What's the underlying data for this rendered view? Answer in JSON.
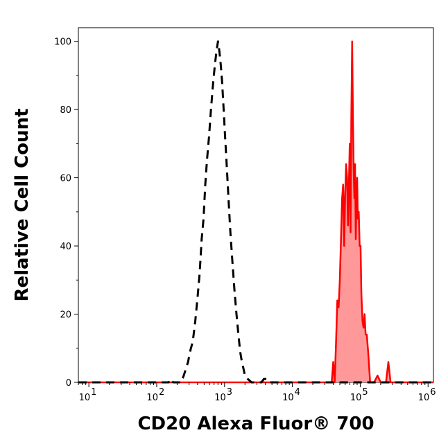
{
  "chart_data": {
    "type": "area",
    "title": "",
    "xlabel": "CD20 Alexa Fluor® 700",
    "ylabel": "Relative Cell Count",
    "x_scale": "log",
    "xlim": [
      7,
      1200000
    ],
    "ylim": [
      0,
      104
    ],
    "x_ticks": [
      {
        "value": 10,
        "base": "10",
        "exp": "1"
      },
      {
        "value": 100,
        "base": "10",
        "exp": "2"
      },
      {
        "value": 1000,
        "base": "10",
        "exp": "3"
      },
      {
        "value": 10000,
        "base": "10",
        "exp": "4"
      },
      {
        "value": 100000,
        "base": "10",
        "exp": "5"
      },
      {
        "value": 1000000,
        "base": "10",
        "exp": "6"
      }
    ],
    "y_ticks": [
      0,
      20,
      40,
      60,
      80,
      100
    ],
    "grid": false,
    "legend": "none",
    "series": [
      {
        "style": "dashed",
        "color": "#000000",
        "fill": "none",
        "points": [
          [
            7,
            0
          ],
          [
            100,
            0
          ],
          [
            150,
            0
          ],
          [
            160,
            1
          ],
          [
            175,
            0
          ],
          [
            230,
            0
          ],
          [
            250,
            2
          ],
          [
            270,
            4
          ],
          [
            290,
            6
          ],
          [
            310,
            9
          ],
          [
            340,
            12
          ],
          [
            370,
            18
          ],
          [
            400,
            25
          ],
          [
            430,
            32
          ],
          [
            460,
            42
          ],
          [
            490,
            48
          ],
          [
            520,
            58
          ],
          [
            550,
            65
          ],
          [
            590,
            72
          ],
          [
            630,
            80
          ],
          [
            680,
            88
          ],
          [
            720,
            93
          ],
          [
            760,
            97
          ],
          [
            800,
            100
          ],
          [
            840,
            97
          ],
          [
            880,
            93
          ],
          [
            920,
            88
          ],
          [
            970,
            80
          ],
          [
            1020,
            72
          ],
          [
            1080,
            63
          ],
          [
            1150,
            53
          ],
          [
            1220,
            44
          ],
          [
            1300,
            36
          ],
          [
            1400,
            27
          ],
          [
            1500,
            20
          ],
          [
            1600,
            14
          ],
          [
            1700,
            9
          ],
          [
            1800,
            6
          ],
          [
            1900,
            4
          ],
          [
            2000,
            2
          ],
          [
            2200,
            1
          ],
          [
            2500,
            0
          ],
          [
            3000,
            0
          ],
          [
            3500,
            0
          ],
          [
            3800,
            1
          ],
          [
            4200,
            1
          ],
          [
            4600,
            0
          ],
          [
            5000,
            0
          ],
          [
            1200000,
            0
          ]
        ]
      },
      {
        "style": "solid",
        "color": "#ff0000",
        "fill": "#ff9999",
        "points": [
          [
            7,
            0
          ],
          [
            30000,
            0
          ],
          [
            38000,
            0
          ],
          [
            40000,
            6
          ],
          [
            42000,
            0
          ],
          [
            44000,
            12
          ],
          [
            46000,
            24
          ],
          [
            48000,
            22
          ],
          [
            50000,
            30
          ],
          [
            52000,
            42
          ],
          [
            54000,
            54
          ],
          [
            56000,
            58
          ],
          [
            58000,
            40
          ],
          [
            60000,
            55
          ],
          [
            62000,
            64
          ],
          [
            64000,
            60
          ],
          [
            66000,
            46
          ],
          [
            68000,
            58
          ],
          [
            70000,
            70
          ],
          [
            72000,
            44
          ],
          [
            74000,
            78
          ],
          [
            76000,
            100
          ],
          [
            78000,
            78
          ],
          [
            80000,
            62
          ],
          [
            82000,
            54
          ],
          [
            84000,
            64
          ],
          [
            86000,
            42
          ],
          [
            88000,
            55
          ],
          [
            90000,
            60
          ],
          [
            92000,
            48
          ],
          [
            95000,
            50
          ],
          [
            98000,
            40
          ],
          [
            101000,
            40
          ],
          [
            104000,
            26
          ],
          [
            108000,
            18
          ],
          [
            112000,
            16
          ],
          [
            116000,
            20
          ],
          [
            120000,
            14
          ],
          [
            125000,
            14
          ],
          [
            132000,
            8
          ],
          [
            140000,
            0
          ],
          [
            160000,
            0
          ],
          [
            180000,
            2
          ],
          [
            200000,
            0
          ],
          [
            240000,
            0
          ],
          [
            260000,
            6
          ],
          [
            280000,
            0
          ],
          [
            1200000,
            0
          ]
        ]
      }
    ]
  }
}
